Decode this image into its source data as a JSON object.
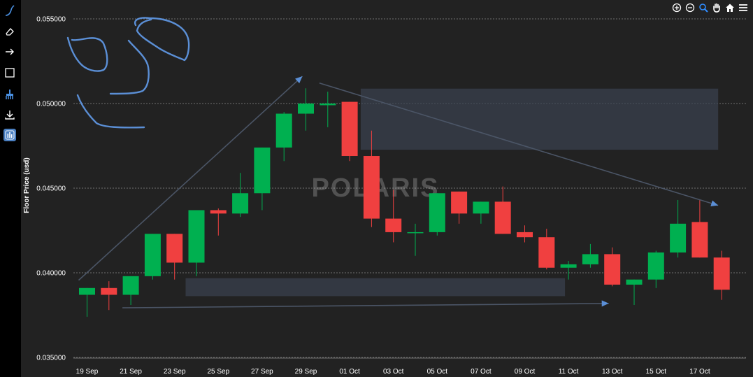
{
  "sidebar": {
    "tools": [
      {
        "icon": "freehand-pen-icon"
      },
      {
        "icon": "eraser-icon"
      },
      {
        "icon": "arrow-tool-icon"
      },
      {
        "icon": "rectangle-tool-icon"
      },
      {
        "icon": "brush-clear-icon"
      },
      {
        "icon": "download-icon"
      },
      {
        "icon": "bar-chart-icon",
        "active": true
      }
    ]
  },
  "toolbar": {
    "tools": [
      {
        "icon": "zoom-in-icon"
      },
      {
        "icon": "zoom-out-icon"
      },
      {
        "icon": "zoom-select-icon"
      },
      {
        "icon": "pan-hand-icon"
      },
      {
        "icon": "home-reset-icon"
      },
      {
        "icon": "menu-icon"
      }
    ]
  },
  "watermark": "POLARIS",
  "colors": {
    "up": "#00b050",
    "down": "#f04040",
    "background": "#222222",
    "grid": "#8a8a8a",
    "annotation": "#5b8fd6",
    "zone": "#3a4250"
  },
  "chart_data": {
    "type": "candlestick",
    "ylabel": "Floor Price (usd)",
    "ylim": [
      0.035,
      0.0555
    ],
    "y_ticks": [
      "0.035000",
      "0.040000",
      "0.045000",
      "0.050000",
      "0.055000"
    ],
    "x_ticks": [
      "19 Sep",
      "21 Sep",
      "23 Sep",
      "25 Sep",
      "27 Sep",
      "29 Sep",
      "01 Oct",
      "03 Oct",
      "05 Oct",
      "07 Oct",
      "09 Oct",
      "11 Oct",
      "13 Oct",
      "15 Oct",
      "17 Oct"
    ],
    "grid": "horizontal dashed",
    "candles": [
      {
        "date": "2022-09-19",
        "open": 0.0387,
        "high": 0.0391,
        "low": 0.0374,
        "close": 0.0391
      },
      {
        "date": "2022-09-20",
        "open": 0.0391,
        "high": 0.0395,
        "low": 0.0378,
        "close": 0.0387
      },
      {
        "date": "2022-09-21",
        "open": 0.0387,
        "high": 0.0398,
        "low": 0.0381,
        "close": 0.0398
      },
      {
        "date": "2022-09-22",
        "open": 0.0398,
        "high": 0.0423,
        "low": 0.0396,
        "close": 0.0423
      },
      {
        "date": "2022-09-23",
        "open": 0.0423,
        "high": 0.0423,
        "low": 0.0396,
        "close": 0.0406
      },
      {
        "date": "2022-09-24",
        "open": 0.0406,
        "high": 0.0437,
        "low": 0.0398,
        "close": 0.0437
      },
      {
        "date": "2022-09-25",
        "open": 0.0437,
        "high": 0.0438,
        "low": 0.0422,
        "close": 0.0435
      },
      {
        "date": "2022-09-26",
        "open": 0.0435,
        "high": 0.0459,
        "low": 0.0433,
        "close": 0.0447
      },
      {
        "date": "2022-09-27",
        "open": 0.0447,
        "high": 0.0474,
        "low": 0.0437,
        "close": 0.0474
      },
      {
        "date": "2022-09-28",
        "open": 0.0474,
        "high": 0.0495,
        "low": 0.0466,
        "close": 0.0494
      },
      {
        "date": "2022-09-29",
        "open": 0.0494,
        "high": 0.0509,
        "low": 0.0484,
        "close": 0.05
      },
      {
        "date": "2022-09-30",
        "open": 0.0499,
        "high": 0.0507,
        "low": 0.0486,
        "close": 0.05
      },
      {
        "date": "2022-10-01",
        "open": 0.0501,
        "high": 0.0501,
        "low": 0.0466,
        "close": 0.0469
      },
      {
        "date": "2022-10-02",
        "open": 0.0469,
        "high": 0.0484,
        "low": 0.0427,
        "close": 0.0432
      },
      {
        "date": "2022-10-03",
        "open": 0.0432,
        "high": 0.0449,
        "low": 0.0418,
        "close": 0.0424
      },
      {
        "date": "2022-10-04",
        "open": 0.0424,
        "high": 0.0429,
        "low": 0.041,
        "close": 0.0424
      },
      {
        "date": "2022-10-05",
        "open": 0.0424,
        "high": 0.0447,
        "low": 0.0422,
        "close": 0.0447
      },
      {
        "date": "2022-10-06",
        "open": 0.0448,
        "high": 0.0448,
        "low": 0.0429,
        "close": 0.0435
      },
      {
        "date": "2022-10-07",
        "open": 0.0435,
        "high": 0.0442,
        "low": 0.0429,
        "close": 0.0442
      },
      {
        "date": "2022-10-08",
        "open": 0.0442,
        "high": 0.0451,
        "low": 0.0423,
        "close": 0.0423
      },
      {
        "date": "2022-10-09",
        "open": 0.0424,
        "high": 0.0428,
        "low": 0.0418,
        "close": 0.0421
      },
      {
        "date": "2022-10-10",
        "open": 0.0421,
        "high": 0.0426,
        "low": 0.0402,
        "close": 0.0403
      },
      {
        "date": "2022-10-11",
        "open": 0.0403,
        "high": 0.0407,
        "low": 0.0396,
        "close": 0.0405
      },
      {
        "date": "2022-10-12",
        "open": 0.0405,
        "high": 0.0417,
        "low": 0.0403,
        "close": 0.0411
      },
      {
        "date": "2022-10-13",
        "open": 0.0411,
        "high": 0.0415,
        "low": 0.0392,
        "close": 0.0393
      },
      {
        "date": "2022-10-14",
        "open": 0.0393,
        "high": 0.0396,
        "low": 0.0381,
        "close": 0.0396
      },
      {
        "date": "2022-10-15",
        "open": 0.0396,
        "high": 0.0413,
        "low": 0.0391,
        "close": 0.0412
      },
      {
        "date": "2022-10-16",
        "open": 0.0412,
        "high": 0.0443,
        "low": 0.0409,
        "close": 0.0429
      },
      {
        "date": "2022-10-17",
        "open": 0.043,
        "high": 0.0443,
        "low": 0.0409,
        "close": 0.0409
      },
      {
        "date": "2022-10-18",
        "open": 0.0409,
        "high": 0.0413,
        "low": 0.0384,
        "close": 0.039
      }
    ],
    "annotations": {
      "zones": [
        {
          "x0": "2022-10-02",
          "x1": "2022-10-18",
          "y0": 0.04727,
          "y1": 0.05088
        },
        {
          "x0": "2022-09-24",
          "x1": "2022-10-11",
          "y0": 0.03862,
          "y1": 0.03968
        }
      ],
      "arrows": [
        {
          "x0": "2022-09-19",
          "y0": 0.03956,
          "x1": "2022-09-29",
          "y1": 0.05161
        },
        {
          "x0": "2022-09-30",
          "y0": 0.05121,
          "x1": "2022-10-18",
          "y1": 0.04398
        },
        {
          "x0": "2022-09-21",
          "y0": 0.03793,
          "x1": "2022-10-13",
          "y1": 0.03819
        }
      ],
      "freehand_strokes": [
        [
          [
            "2022-09-19",
            0.05393
          ],
          [
            "2022-09-19",
            0.05301
          ],
          [
            "2022-09-20",
            0.05224
          ],
          [
            "2022-09-20",
            0.052
          ],
          [
            "2022-09-20",
            0.05212
          ],
          [
            "2022-09-20",
            0.05243
          ],
          [
            "2022-09-20",
            0.05325
          ],
          [
            "2022-09-19",
            0.05369
          ],
          [
            "2022-09-19",
            0.05376
          ],
          [
            "2022-09-19",
            0.05379
          ]
        ],
        [
          [
            "2022-09-21",
            0.05378
          ],
          [
            "2022-09-21",
            0.0533
          ],
          [
            "2022-09-22",
            0.05272
          ],
          [
            "2022-09-22",
            0.05233
          ],
          [
            "2022-09-22",
            0.05152
          ],
          [
            "2022-09-21",
            0.05133
          ],
          [
            "2022-09-21",
            0.0513
          ]
        ],
        [
          [
            "2022-09-22",
            0.05429
          ],
          [
            "2022-09-22",
            0.05474
          ],
          [
            "2022-09-23",
            0.05485
          ],
          [
            "2022-09-23",
            0.05442
          ],
          [
            "2022-09-23",
            0.05302
          ],
          [
            "2022-09-23",
            0.05334
          ],
          [
            "2022-09-23",
            0.05366
          ],
          [
            "2022-09-22",
            0.05378
          ],
          [
            "2022-09-22",
            0.05398
          ],
          [
            "2022-09-22",
            0.0547
          ],
          [
            "2022-09-22",
            0.05473
          ]
        ],
        [
          [
            "2022-09-19",
            0.0506
          ],
          [
            "2022-09-19",
            0.04985
          ],
          [
            "2022-09-20",
            0.049
          ],
          [
            "2022-09-20",
            0.04876
          ],
          [
            "2022-09-21",
            0.04869
          ],
          [
            "2022-09-22",
            0.04869
          ]
        ]
      ]
    }
  }
}
